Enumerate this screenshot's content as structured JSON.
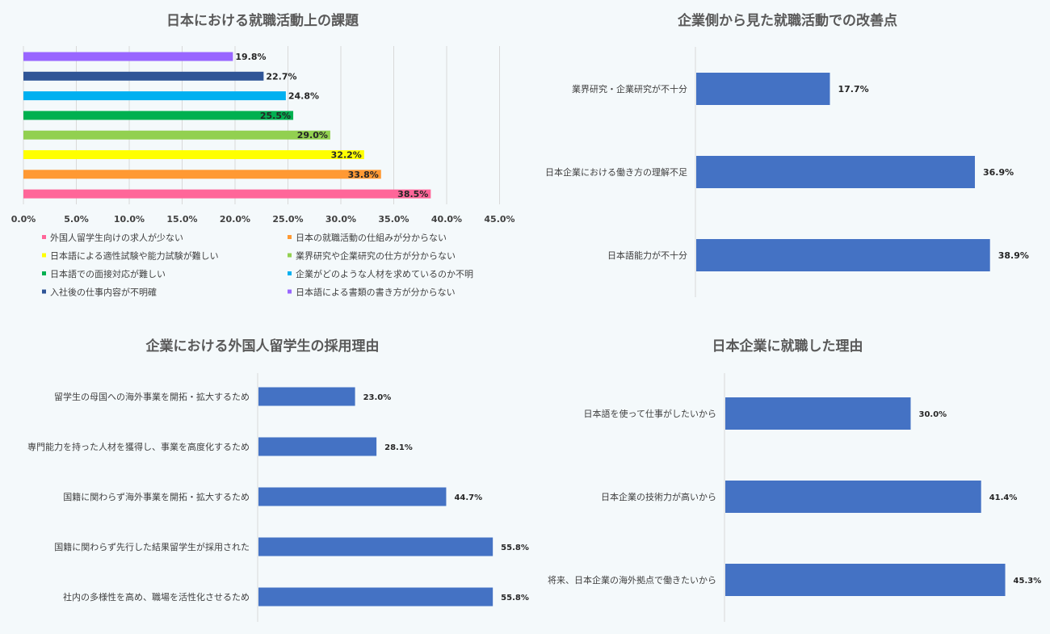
{
  "chart_data": [
    {
      "type": "bar",
      "orientation": "horizontal",
      "title": "日本における就職活動上の課題",
      "categories": [
        "外国人留学生向けの求人が少ない",
        "日本の就職活動の仕組みが分からない",
        "日本語による適性試験や能力試験が難しい",
        "業界研究や企業研究の仕方が分からない",
        "日本語での面接対応が難しい",
        "企業がどのような人材を求めているのか不明",
        "入社後の仕事内容が不明確",
        "日本語による書類の書き方が分からない"
      ],
      "values": [
        38.5,
        33.8,
        32.2,
        29.0,
        25.5,
        24.8,
        22.7,
        19.8
      ],
      "value_labels": [
        "38.5%",
        "33.8%",
        "32.2%",
        "29.0%",
        "25.5%",
        "24.8%",
        "22.7%",
        "19.8%"
      ],
      "colors": [
        "#ff6699",
        "#ff9933",
        "#ffff00",
        "#92d050",
        "#00b050",
        "#00b0f0",
        "#2f5597",
        "#9966ff"
      ],
      "xlim": [
        0,
        45
      ],
      "xticks": [
        "0.0%",
        "5.0%",
        "10.0%",
        "15.0%",
        "20.0%",
        "25.0%",
        "30.0%",
        "35.0%",
        "40.0%",
        "45.0%"
      ],
      "grid": true,
      "legend": "bottom"
    },
    {
      "type": "bar",
      "orientation": "horizontal",
      "title": "企業側から見た就職活動での改善点",
      "categories": [
        "業界研究・企業研究が不十分",
        "日本企業における働き方の理解不足",
        "日本語能力が不十分"
      ],
      "values": [
        17.7,
        36.9,
        38.9
      ],
      "value_labels": [
        "17.7%",
        "36.9%",
        "38.9%"
      ],
      "color": "#4472c4"
    },
    {
      "type": "bar",
      "orientation": "horizontal",
      "title": "企業における外国人留学生の採用理由",
      "categories": [
        "留学生の母国への海外事業を開拓・拡大するため",
        "専門能力を持った人材を獲得し、事業を高度化するため",
        "国籍に関わらず海外事業を開拓・拡大するため",
        "国籍に関わらず先行した結果留学生が採用された",
        "社内の多様性を高め、職場を活性化させるため"
      ],
      "values": [
        23.0,
        28.1,
        44.7,
        55.8,
        55.8
      ],
      "value_labels": [
        "23.0%",
        "28.1%",
        "44.7%",
        "55.8%",
        "55.8%"
      ],
      "color": "#4472c4"
    },
    {
      "type": "bar",
      "orientation": "horizontal",
      "title": "日本企業に就職した理由",
      "categories": [
        "日本語を使って仕事がしたいから",
        "日本企業の技術力が高いから",
        "将来、日本企業の海外拠点で働きたいから"
      ],
      "values": [
        30.0,
        41.4,
        45.3
      ],
      "value_labels": [
        "30.0%",
        "41.4%",
        "45.3%"
      ],
      "color": "#4472c4"
    }
  ]
}
